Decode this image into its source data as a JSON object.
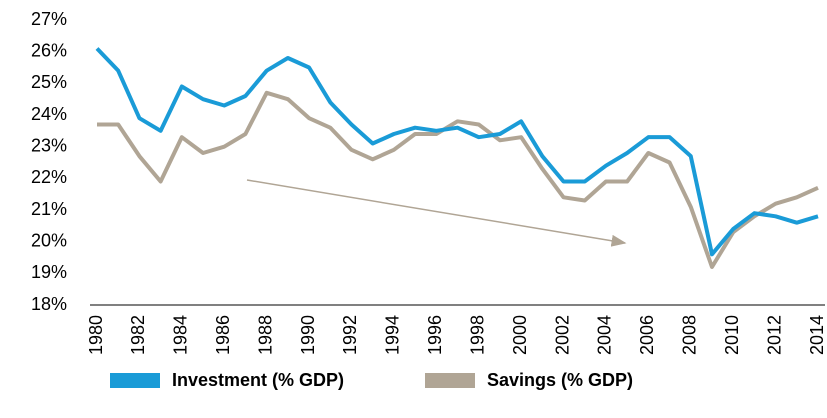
{
  "chart_data": {
    "type": "line",
    "x": [
      1980,
      1981,
      1982,
      1983,
      1984,
      1985,
      1986,
      1987,
      1988,
      1989,
      1990,
      1991,
      1992,
      1993,
      1994,
      1995,
      1996,
      1997,
      1998,
      1999,
      2000,
      2001,
      2002,
      2003,
      2004,
      2005,
      2006,
      2007,
      2008,
      2009,
      2010,
      2011,
      2012,
      2013,
      2014
    ],
    "series": [
      {
        "name": "Investment (% GDP)",
        "color": "#1a9bd7",
        "values": [
          26.1,
          25.4,
          23.9,
          23.5,
          24.9,
          24.5,
          24.3,
          24.6,
          25.4,
          25.8,
          25.5,
          24.4,
          23.7,
          23.1,
          23.4,
          23.6,
          23.5,
          23.6,
          23.3,
          23.4,
          23.8,
          22.7,
          21.9,
          21.9,
          22.4,
          22.8,
          23.3,
          23.3,
          22.7,
          19.6,
          20.4,
          20.9,
          20.8,
          20.6,
          20.8
        ]
      },
      {
        "name": "Savings (% GDP)",
        "color": "#b0a595",
        "values": [
          23.7,
          23.7,
          22.7,
          21.9,
          23.3,
          22.8,
          23.0,
          23.4,
          24.7,
          24.5,
          23.9,
          23.6,
          22.9,
          22.6,
          22.9,
          23.4,
          23.4,
          23.8,
          23.7,
          23.2,
          23.3,
          22.3,
          21.4,
          21.3,
          21.9,
          21.9,
          22.8,
          22.5,
          21.1,
          19.2,
          20.3,
          20.8,
          21.2,
          21.4,
          21.7
        ]
      }
    ],
    "xlim": [
      1980,
      2014
    ],
    "xticks": [
      1980,
      1982,
      1984,
      1986,
      1988,
      1990,
      1992,
      1994,
      1996,
      1998,
      2000,
      2002,
      2004,
      2006,
      2008,
      2010,
      2012,
      2014
    ],
    "ylim": [
      18,
      27
    ],
    "yticks": [
      {
        "value": 18,
        "label": "18%"
      },
      {
        "value": 19,
        "label": "19%"
      },
      {
        "value": 20,
        "label": "20%"
      },
      {
        "value": 21,
        "label": "21%"
      },
      {
        "value": 22,
        "label": "22%"
      },
      {
        "value": 23,
        "label": "23%"
      },
      {
        "value": 24,
        "label": "24%"
      },
      {
        "value": 25,
        "label": "25%"
      },
      {
        "value": 26,
        "label": "26%"
      },
      {
        "value": 27,
        "label": "27%"
      }
    ],
    "grid": false
  }
}
